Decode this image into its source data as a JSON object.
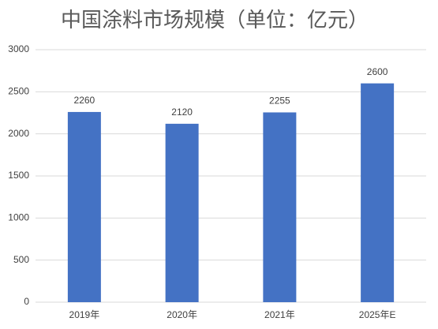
{
  "chart_data": {
    "type": "bar",
    "title": "中国涂料市场规模（单位：亿元）",
    "categories": [
      "2019年",
      "2020年",
      "2021年",
      "2025年E"
    ],
    "values": [
      2260,
      2120,
      2255,
      2600
    ],
    "color": "#4472c4",
    "ylim": [
      0,
      3000
    ],
    "yticks": [
      0,
      500,
      1000,
      1500,
      2000,
      2500,
      3000
    ],
    "grid": true
  }
}
